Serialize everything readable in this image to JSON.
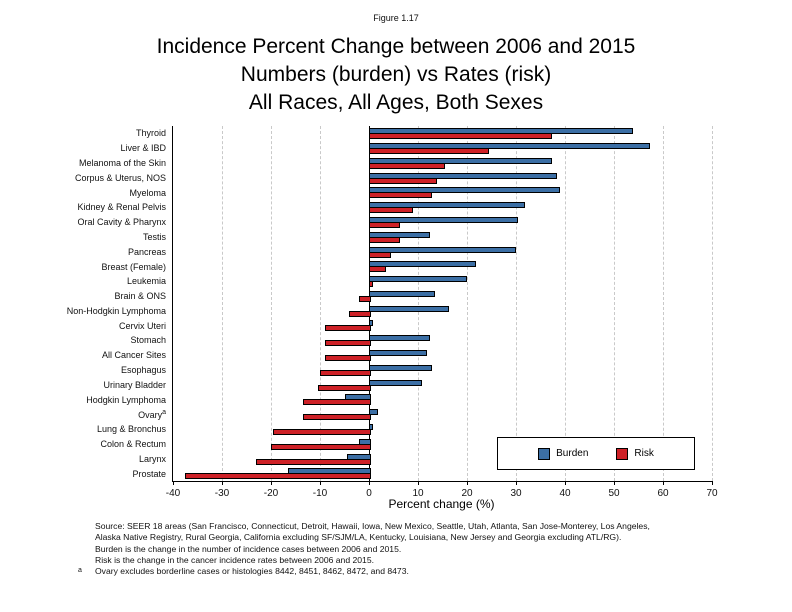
{
  "figure_label": "Figure 1.17",
  "title_lines": [
    "Incidence Percent Change between 2006 and 2015",
    "Numbers (burden) vs Rates (risk)",
    "All Races, All Ages, Both Sexes"
  ],
  "chart_data": {
    "type": "bar",
    "orientation": "horizontal",
    "title": "Incidence Percent Change between 2006 and 2015 — Numbers (burden) vs Rates (risk) — All Races, All Ages, Both Sexes",
    "xlabel": "Percent change (%)",
    "xlim": [
      -40,
      70
    ],
    "xticks": [
      -40,
      -30,
      -20,
      -10,
      0,
      10,
      20,
      30,
      40,
      50,
      60,
      70
    ],
    "grid": "vertical dashed gridlines at each tick except 0; solid black line at 0",
    "legend_position": "inside bottom-right",
    "categories": [
      {
        "label": "Thyroid"
      },
      {
        "label": "Liver & IBD"
      },
      {
        "label": "Melanoma of the Skin"
      },
      {
        "label": "Corpus & Uterus, NOS"
      },
      {
        "label": "Myeloma"
      },
      {
        "label": "Kidney & Renal Pelvis"
      },
      {
        "label": "Oral Cavity & Pharynx"
      },
      {
        "label": "Testis"
      },
      {
        "label": "Pancreas"
      },
      {
        "label": "Breast (Female)"
      },
      {
        "label": "Leukemia"
      },
      {
        "label": "Brain & ONS"
      },
      {
        "label": "Non-Hodgkin Lymphoma"
      },
      {
        "label": "Cervix Uteri"
      },
      {
        "label": "Stomach"
      },
      {
        "label": "All Cancer Sites"
      },
      {
        "label": "Esophagus"
      },
      {
        "label": "Urinary Bladder"
      },
      {
        "label": "Hodgkin Lymphoma"
      },
      {
        "label": "Ovary",
        "sup": "a"
      },
      {
        "label": "Lung & Bronchus"
      },
      {
        "label": "Colon & Rectum"
      },
      {
        "label": "Larynx"
      },
      {
        "label": "Prostate"
      }
    ],
    "series": [
      {
        "name": "Burden",
        "color": "#3C6FA5",
        "values": [
          53.5,
          57.0,
          37.0,
          38.0,
          38.5,
          31.5,
          30.0,
          12.0,
          29.5,
          21.5,
          19.5,
          13.0,
          16.0,
          0.5,
          12.0,
          11.5,
          12.5,
          10.5,
          -5.0,
          1.5,
          0.5,
          -2.0,
          -4.5,
          -16.5
        ]
      },
      {
        "name": "Risk",
        "color": "#CE2127",
        "values": [
          37.0,
          24.0,
          15.0,
          13.5,
          12.5,
          8.5,
          6.0,
          6.0,
          4.0,
          3.0,
          0.5,
          -2.0,
          -4.0,
          -9.0,
          -9.0,
          -9.0,
          -10.0,
          -10.5,
          -13.5,
          -13.5,
          -19.5,
          -20.0,
          -23.0,
          -37.5
        ]
      }
    ]
  },
  "legend": {
    "items": [
      {
        "label": "Burden",
        "color": "#3C6FA5"
      },
      {
        "label": "Risk",
        "color": "#CE2127"
      }
    ]
  },
  "footer": {
    "lines": [
      "Source: SEER 18 areas (San Francisco, Connecticut, Detroit, Hawaii, Iowa, New Mexico, Seattle, Utah, Atlanta, San Jose-Monterey, Los Angeles,",
      "Alaska Native Registry, Rural Georgia, California excluding SF/SJM/LA, Kentucky, Louisiana, New Jersey and Georgia excluding ATL/RG).",
      "Burden is the change in the number of incidence cases between 2006 and 2015.",
      "Risk is the change in the cancer incidence rates between 2006 and 2015."
    ],
    "footnote": {
      "marker": "a",
      "text": "Ovary excludes borderline cases or histologies 8442, 8451, 8462, 8472, and 8473."
    }
  }
}
